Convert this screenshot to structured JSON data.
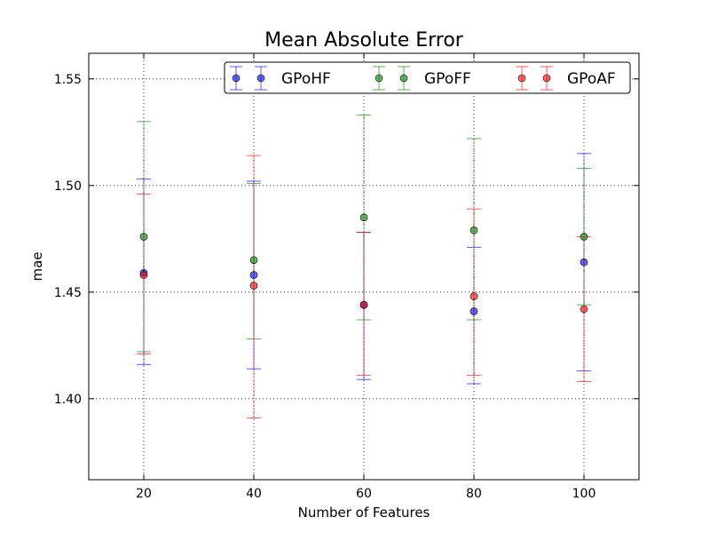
{
  "chart_data": {
    "type": "scatter",
    "title": "Mean Absolute Error",
    "xlabel": "Number of Features",
    "ylabel": "mae",
    "xlim": [
      10,
      110
    ],
    "ylim": [
      1.362,
      1.562
    ],
    "xticks": [
      20,
      40,
      60,
      80,
      100
    ],
    "xtick_labels": [
      "20",
      "40",
      "60",
      "80",
      "100"
    ],
    "yticks": [
      1.4,
      1.45,
      1.5,
      1.55
    ],
    "ytick_labels": [
      "1.40",
      "1.45",
      "1.50",
      "1.55"
    ],
    "grid": true,
    "error_bars": true,
    "legend": {
      "placement": "top-right",
      "columns": 3
    },
    "series": [
      {
        "name": "GPoHF",
        "color": "#0000ff",
        "x": [
          20,
          40,
          60,
          80,
          100
        ],
        "y": [
          1.459,
          1.458,
          1.444,
          1.441,
          1.464
        ],
        "yerr_low": [
          1.416,
          1.414,
          1.409,
          1.407,
          1.413
        ],
        "yerr_high": [
          1.503,
          1.502,
          1.478,
          1.471,
          1.515
        ]
      },
      {
        "name": "GPoFF",
        "color": "#008000",
        "x": [
          20,
          40,
          60,
          80,
          100
        ],
        "y": [
          1.476,
          1.465,
          1.485,
          1.479,
          1.476
        ],
        "yerr_low": [
          1.422,
          1.428,
          1.437,
          1.437,
          1.444
        ],
        "yerr_high": [
          1.53,
          1.501,
          1.533,
          1.522,
          1.508
        ]
      },
      {
        "name": "GPoAF",
        "color": "#ff0000",
        "x": [
          20,
          40,
          60,
          80,
          100
        ],
        "y": [
          1.458,
          1.453,
          1.444,
          1.448,
          1.442
        ],
        "yerr_low": [
          1.421,
          1.391,
          1.411,
          1.411,
          1.408
        ],
        "yerr_high": [
          1.496,
          1.514,
          1.478,
          1.489,
          1.476
        ]
      }
    ]
  }
}
